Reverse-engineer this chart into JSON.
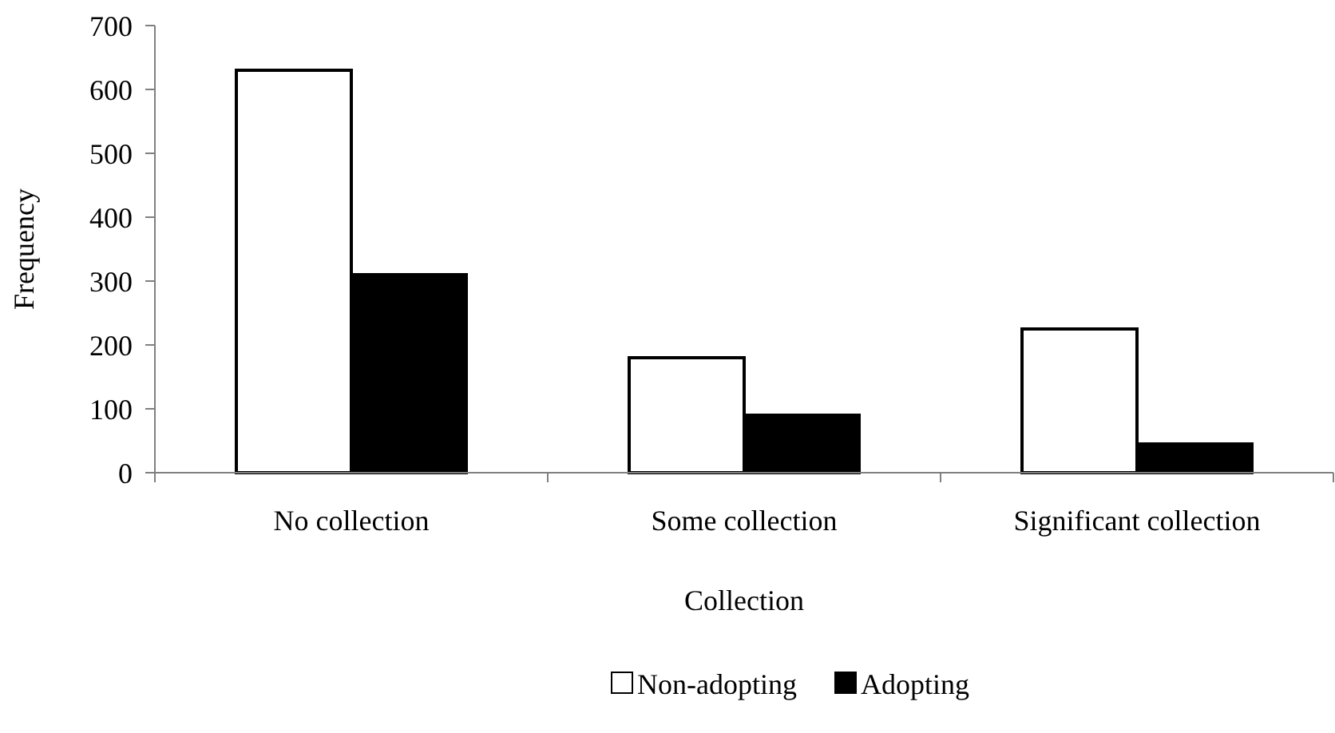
{
  "chart_data": {
    "type": "bar",
    "xlabel": "Collection",
    "ylabel": "Frequency",
    "categories": [
      "No collection",
      "Some collection",
      "Significant collection"
    ],
    "series": [
      {
        "name": "Non-adopting",
        "color": "#ffffff",
        "values": [
          630,
          180,
          225
        ]
      },
      {
        "name": "Adopting",
        "color": "#000000",
        "values": [
          310,
          90,
          45
        ]
      }
    ],
    "ylim": [
      0,
      700
    ],
    "yticks": [
      0,
      100,
      200,
      300,
      400,
      500,
      600,
      700
    ],
    "grid": false,
    "legend": "bottom"
  }
}
